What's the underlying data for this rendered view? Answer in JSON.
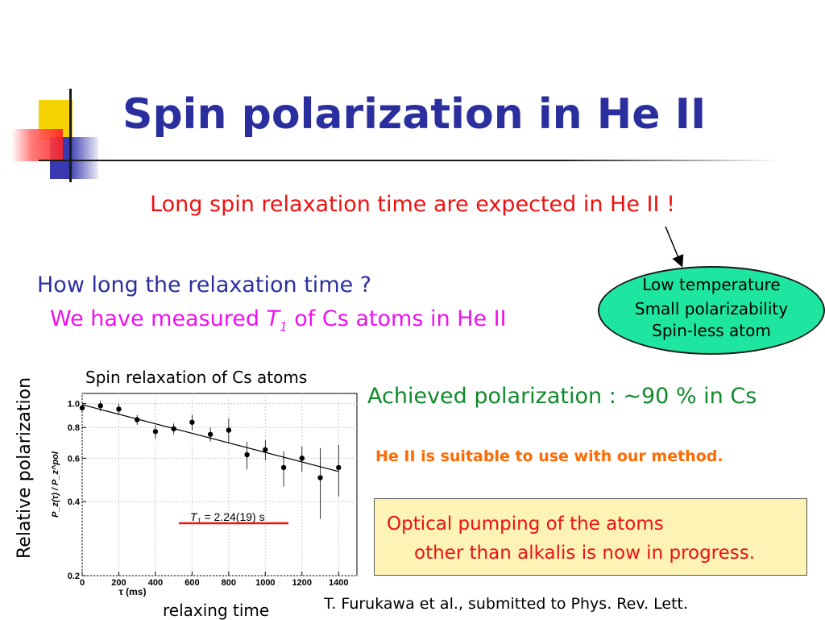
{
  "slide": {
    "title": "Spin polarization in He II",
    "subtitle_red": "Long spin relaxation time are expected in He II !",
    "question": "How long the relaxation time ?",
    "measured_pre": "We have measured ",
    "measured_T": "T",
    "measured_sub": "1",
    "measured_post": " of Cs atoms in He II",
    "ellipse": {
      "line1": "Low temperature",
      "line2": "Small polarizability",
      "line3": "Spin-less atom"
    },
    "achieved": "Achieved polarization : ~90 % in Cs",
    "suitable": "He II is suitable to use with our method.",
    "box": {
      "line1": "Optical pumping of the atoms",
      "line2": "other than alkalis  is now in progress."
    },
    "reference": "T. Furukawa et al., submitted to Phys. Rev. Lett.",
    "colors": {
      "title": "#2b2f9e",
      "red": "#ee1111",
      "magenta": "#ee11ee",
      "green": "#0f8a2a",
      "orange": "#ff6a00",
      "ellipse_fill": "#1ee6a0",
      "box_fill": "#fdf3b4"
    }
  },
  "chart_data": {
    "type": "scatter",
    "title": "Spin relaxation of Cs atoms",
    "ylabel_outer": "Relative polarization",
    "ylabel_inner": "P_z(τ) / P_z^pol",
    "xlabel_inner": "τ (ms)",
    "xlabel_outer": "relaxing time",
    "annotation": "T1 = 2.24(19) s",
    "annotation_T": "T",
    "annotation_sub": "1",
    "annotation_rest": " = 2.24(19) s",
    "y_scale": "log",
    "xlim": [
      0,
      1500
    ],
    "ylim": [
      0.2,
      1.1
    ],
    "x_ticks": [
      0,
      200,
      400,
      600,
      800,
      1000,
      1200,
      1400
    ],
    "x_tick_labels": [
      "0",
      "200",
      "400",
      "600",
      "800",
      "1000",
      "1200",
      "1400"
    ],
    "y_ticks": [
      0.2,
      0.4,
      0.6,
      0.8,
      1.0
    ],
    "y_tick_labels": [
      "0.2",
      "0.4",
      "0.6",
      "0.8",
      "1.0"
    ],
    "grid": true,
    "points": [
      {
        "x": 0,
        "y": 0.96,
        "err": 0.02
      },
      {
        "x": 100,
        "y": 0.98,
        "err": 0.05
      },
      {
        "x": 200,
        "y": 0.95,
        "err": 0.05
      },
      {
        "x": 300,
        "y": 0.86,
        "err": 0.04
      },
      {
        "x": 400,
        "y": 0.77,
        "err": 0.05
      },
      {
        "x": 500,
        "y": 0.79,
        "err": 0.04
      },
      {
        "x": 600,
        "y": 0.84,
        "err": 0.06
      },
      {
        "x": 700,
        "y": 0.75,
        "err": 0.05
      },
      {
        "x": 800,
        "y": 0.78,
        "err": 0.09
      },
      {
        "x": 900,
        "y": 0.62,
        "err": 0.08
      },
      {
        "x": 1000,
        "y": 0.65,
        "err": 0.06
      },
      {
        "x": 1100,
        "y": 0.55,
        "err": 0.09
      },
      {
        "x": 1200,
        "y": 0.6,
        "err": 0.07
      },
      {
        "x": 1300,
        "y": 0.5,
        "err": 0.16
      },
      {
        "x": 1400,
        "y": 0.55,
        "err": 0.13
      }
    ],
    "fit": {
      "x": [
        0,
        1400
      ],
      "y": [
        0.99,
        0.53
      ]
    }
  }
}
